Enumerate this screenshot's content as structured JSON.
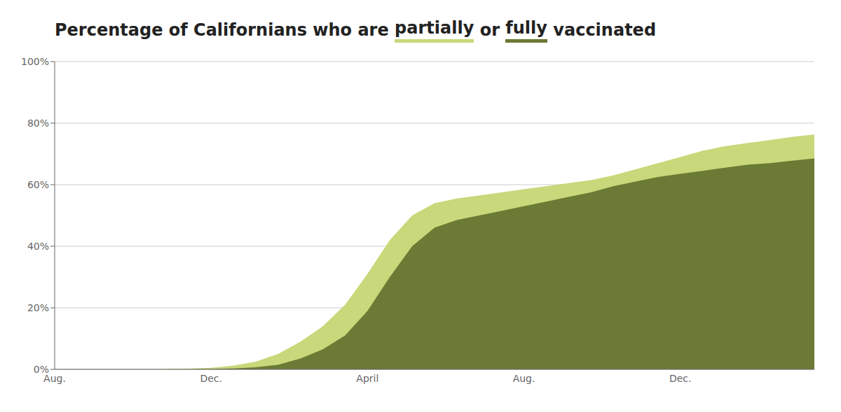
{
  "chart_data": {
    "type": "area",
    "title": "Percentage of Californians who are partially or fully vaccinated",
    "categories": [
      "Aug.",
      null,
      null,
      null,
      null,
      null,
      null,
      "Dec.",
      null,
      null,
      null,
      null,
      null,
      null,
      "April",
      null,
      null,
      null,
      null,
      null,
      null,
      "Aug.",
      null,
      null,
      null,
      null,
      null,
      null,
      "Dec.",
      null,
      null,
      null,
      null,
      null,
      null
    ],
    "series": [
      {
        "name": "partially",
        "color": "#c8d87a",
        "values": [
          0.0,
          0.0,
          0.0,
          0.0,
          0.0,
          0.1,
          0.2,
          0.5,
          1.2,
          2.5,
          5.0,
          9.0,
          14.0,
          21.0,
          31.0,
          42.0,
          50.0,
          54.0,
          55.5,
          56.5,
          57.5,
          58.5,
          59.5,
          60.5,
          61.5,
          63.0,
          65.0,
          67.0,
          69.0,
          71.0,
          72.5,
          73.5,
          74.5,
          75.5,
          76.3
        ]
      },
      {
        "name": "fully",
        "color": "#6b7a34",
        "values": [
          0.0,
          0.0,
          0.0,
          0.0,
          0.0,
          0.0,
          0.05,
          0.1,
          0.3,
          0.7,
          1.5,
          3.5,
          6.5,
          11.0,
          19.0,
          30.0,
          40.0,
          46.0,
          48.5,
          50.0,
          51.5,
          53.0,
          54.5,
          56.0,
          57.5,
          59.5,
          61.0,
          62.5,
          63.5,
          64.5,
          65.5,
          66.5,
          67.0,
          67.8,
          68.5
        ]
      }
    ],
    "ylim": [
      0,
      100
    ],
    "yticks": [
      {
        "value": 0,
        "label": "0%"
      },
      {
        "value": 20,
        "label": "20%"
      },
      {
        "value": 40,
        "label": "40%"
      },
      {
        "value": 60,
        "label": "60%"
      },
      {
        "value": 80,
        "label": "80%"
      },
      {
        "value": 100,
        "label": "100%"
      }
    ],
    "grid": true,
    "stacked": false
  }
}
